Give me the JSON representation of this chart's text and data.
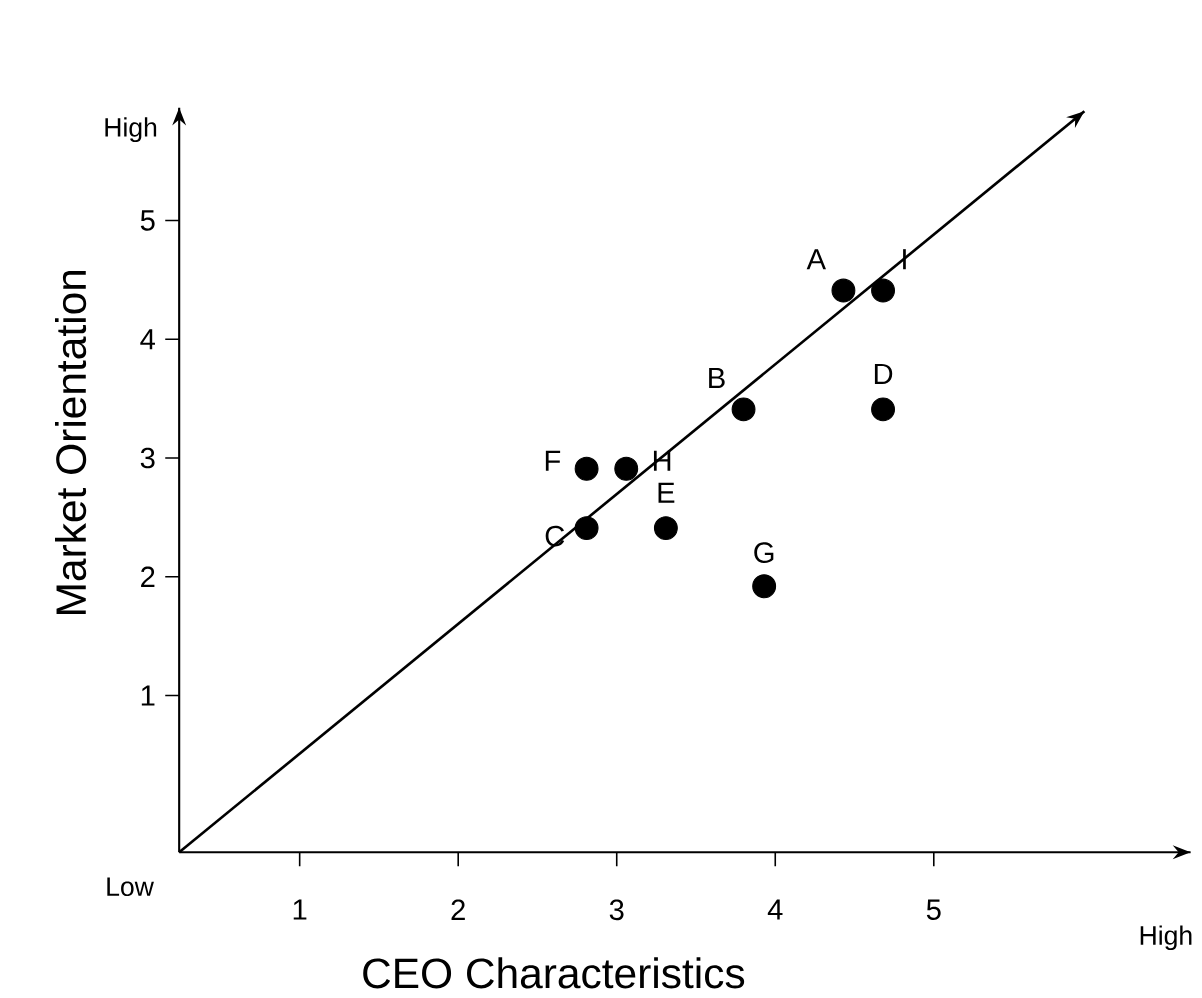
{
  "chart_data": {
    "type": "scatter",
    "xlabel": "CEO Characteristics",
    "ylabel": "Market Orientation",
    "xlim": [
      0.24,
      6.62
    ],
    "ylim": [
      -0.32,
      5.95
    ],
    "xticks": [
      1,
      2,
      3,
      4,
      5
    ],
    "yticks": [
      1,
      2,
      3,
      4,
      5
    ],
    "series": [
      {
        "marker": "circle",
        "color": "#000000",
        "x": [
          4.43,
          4.68,
          3.8,
          4.68,
          2.81,
          3.06,
          2.81,
          3.31,
          3.93
        ],
        "values": [
          4.41,
          4.41,
          3.41,
          3.41,
          2.91,
          2.91,
          2.41,
          2.41,
          1.92
        ]
      },
      {
        "type": "line",
        "marker": "none",
        "color": "#000000",
        "x": [
          0.24,
          5.95
        ],
        "values": [
          -0.32,
          5.92
        ]
      }
    ],
    "annotations": [
      {
        "text": "A",
        "x": 4.43,
        "y": 4.41
      },
      {
        "text": "I",
        "x": 4.68,
        "y": 4.41
      },
      {
        "text": "B",
        "x": 3.8,
        "y": 3.41
      },
      {
        "text": "D",
        "x": 4.68,
        "y": 3.41
      },
      {
        "text": "F",
        "x": 2.81,
        "y": 2.91
      },
      {
        "text": "H",
        "x": 3.06,
        "y": 2.91
      },
      {
        "text": "C",
        "x": 2.81,
        "y": 2.41
      },
      {
        "text": "E",
        "x": 3.31,
        "y": 2.41
      },
      {
        "text": "G",
        "x": 3.93,
        "y": 1.92
      },
      "High",
      "Low",
      "High"
    ]
  }
}
